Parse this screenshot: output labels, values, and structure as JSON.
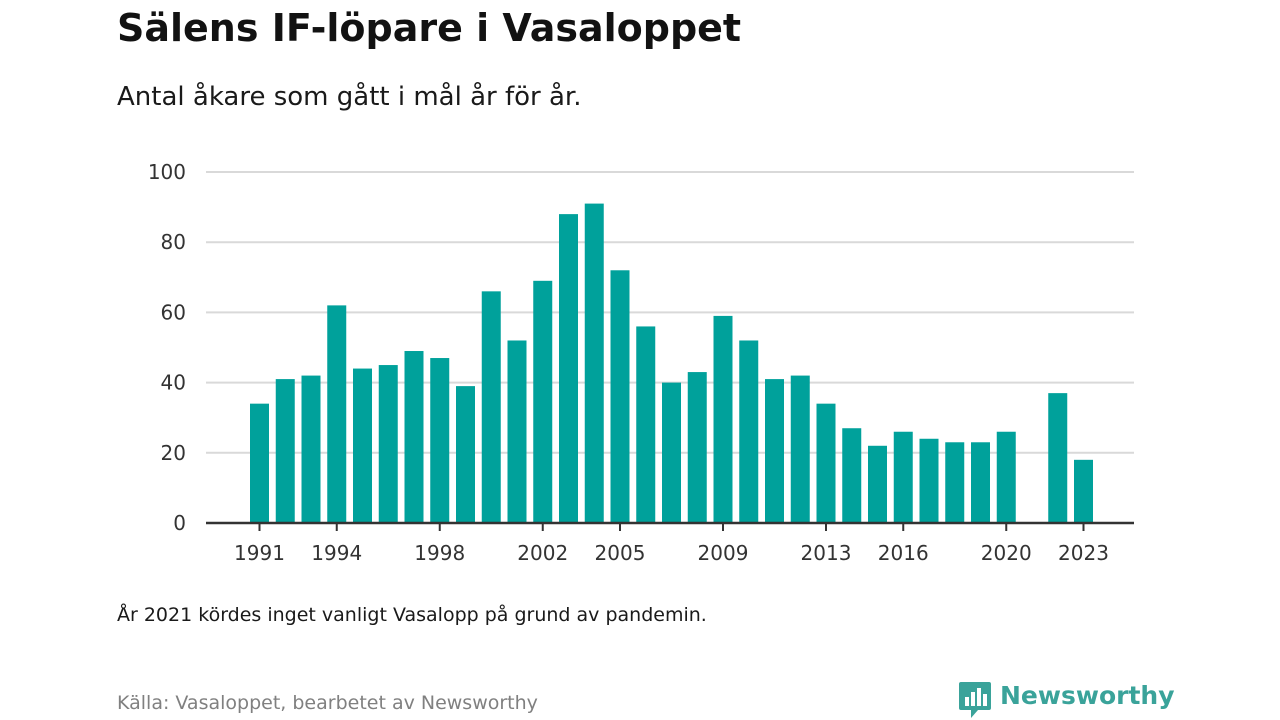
{
  "header": {
    "title": "Sälens IF-löpare i Vasaloppet",
    "subtitle": "Antal åkare som gått i mål år för år."
  },
  "footer": {
    "note": "År 2021 kördes inget vanligt Vasalopp på grund av pandemin.",
    "source": "Källa: Vasaloppet, bearbetet av Newsworthy",
    "logo_text": "Newsworthy"
  },
  "colors": {
    "bar": "#00a19b",
    "grid": "#d9d9d9",
    "axis": "#333333",
    "logo": "#3aa39a"
  },
  "chart_data": {
    "type": "bar",
    "title": "Sälens IF-löpare i Vasaloppet",
    "subtitle": "Antal åkare som gått i mål år för år.",
    "xlabel": "",
    "ylabel": "",
    "ylim": [
      0,
      100
    ],
    "yticks": [
      0,
      20,
      40,
      60,
      80,
      100
    ],
    "xticks": [
      1991,
      1994,
      1998,
      2002,
      2005,
      2009,
      2013,
      2016,
      2020,
      2023
    ],
    "grid": true,
    "legend": "none",
    "categories": [
      1991,
      1992,
      1993,
      1994,
      1995,
      1996,
      1997,
      1998,
      1999,
      2000,
      2001,
      2002,
      2003,
      2004,
      2005,
      2006,
      2007,
      2008,
      2009,
      2010,
      2011,
      2012,
      2013,
      2014,
      2015,
      2016,
      2017,
      2018,
      2019,
      2020,
      2021,
      2022,
      2023
    ],
    "values": [
      34,
      41,
      42,
      62,
      44,
      45,
      49,
      47,
      39,
      66,
      52,
      69,
      88,
      91,
      72,
      56,
      40,
      43,
      59,
      52,
      41,
      42,
      34,
      27,
      22,
      26,
      24,
      23,
      23,
      26,
      null,
      37,
      18
    ]
  }
}
